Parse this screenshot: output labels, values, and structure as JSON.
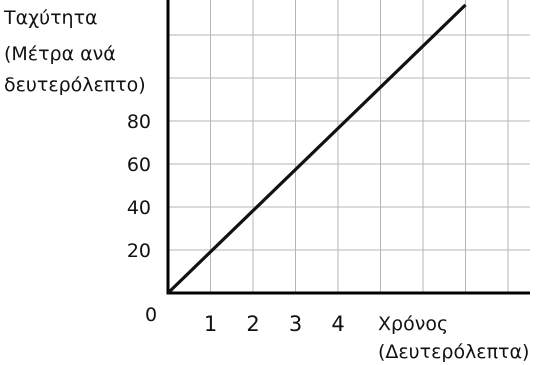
{
  "chart_data": {
    "type": "line",
    "ylabel_lines": [
      "Ταχύτητα",
      "(Μέτρα ανά",
      "δευτερόλεπτο)"
    ],
    "xlabel_lines": [
      "Χρόνος",
      "(Δευτερόλεπτα)"
    ],
    "origin_label": "0",
    "x_ticks": [
      1,
      2,
      3,
      4
    ],
    "y_ticks": [
      20,
      40,
      60,
      80
    ],
    "xlim": [
      0,
      8.5
    ],
    "ylim": [
      0,
      134
    ],
    "grid": true,
    "series": [
      {
        "x": [
          0,
          7.0
        ],
        "y": [
          0,
          134
        ]
      }
    ]
  }
}
